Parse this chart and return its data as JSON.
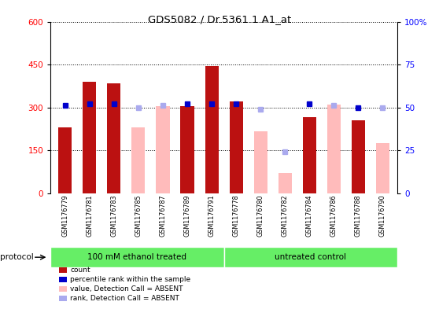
{
  "title": "GDS5082 / Dr.5361.1.A1_at",
  "samples": [
    "GSM1176779",
    "GSM1176781",
    "GSM1176783",
    "GSM1176785",
    "GSM1176787",
    "GSM1176789",
    "GSM1176791",
    "GSM1176778",
    "GSM1176780",
    "GSM1176782",
    "GSM1176784",
    "GSM1176786",
    "GSM1176788",
    "GSM1176790"
  ],
  "count": [
    230,
    390,
    385,
    null,
    null,
    305,
    445,
    320,
    null,
    null,
    265,
    null,
    255,
    null
  ],
  "count_absent": [
    null,
    null,
    null,
    230,
    305,
    null,
    null,
    null,
    215,
    70,
    null,
    310,
    null,
    175
  ],
  "percentile": [
    51,
    52,
    52,
    null,
    null,
    52,
    52,
    52,
    null,
    null,
    52,
    null,
    50,
    null
  ],
  "percentile_absent": [
    null,
    null,
    null,
    50,
    51,
    null,
    null,
    null,
    49,
    24,
    null,
    51,
    null,
    50
  ],
  "group1_label": "100 mM ethanol treated",
  "group2_label": "untreated control",
  "group1_count": 7,
  "group2_count": 7,
  "ylim_left": [
    0,
    600
  ],
  "ylim_right": [
    0,
    100
  ],
  "yticks_left": [
    0,
    150,
    300,
    450,
    600
  ],
  "yticks_right": [
    0,
    25,
    50,
    75,
    100
  ],
  "bar_color_red": "#bb1111",
  "bar_color_pink": "#ffbbbb",
  "dot_color_blue": "#0000cc",
  "dot_color_lightblue": "#aaaaee",
  "group_color": "#66ee66",
  "xtick_bg_color": "#cccccc",
  "plot_bg_color": "#ffffff",
  "protocol_label": "protocol",
  "legend": [
    {
      "label": "count",
      "color": "#bb1111"
    },
    {
      "label": "percentile rank within the sample",
      "color": "#0000cc"
    },
    {
      "label": "value, Detection Call = ABSENT",
      "color": "#ffbbbb"
    },
    {
      "label": "rank, Detection Call = ABSENT",
      "color": "#aaaaee"
    }
  ]
}
